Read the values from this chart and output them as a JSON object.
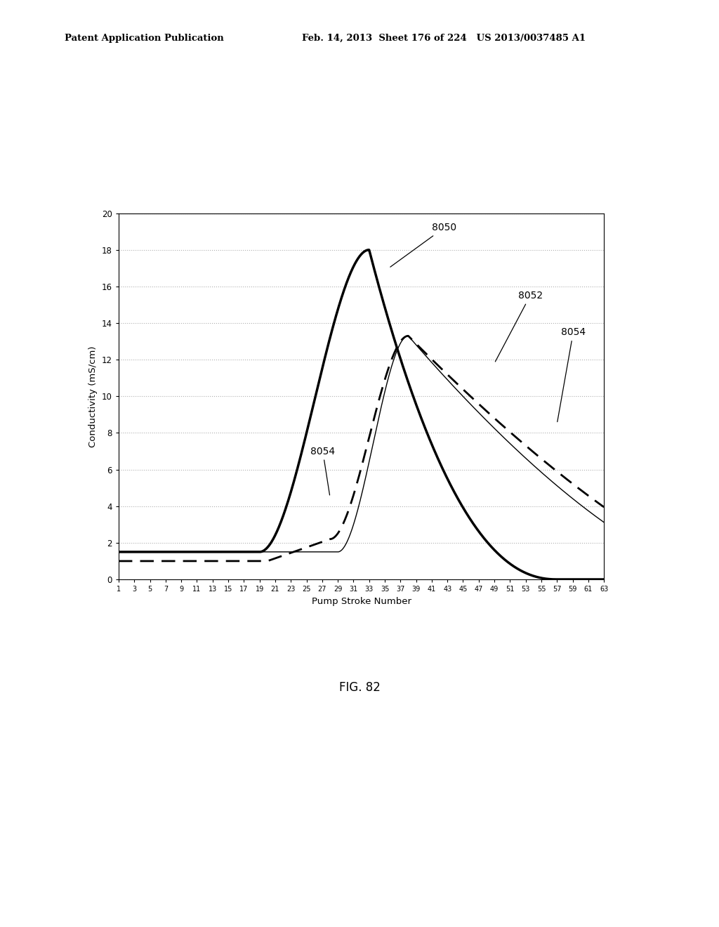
{
  "title_header": "Patent Application Publication    Feb. 14, 2013  Sheet 176 of 224   US 2013/0037485 A1",
  "xlabel": "Pump Stroke Number",
  "ylabel": "Conductivity (mS/cm)",
  "fig_label": "FIG. 82",
  "x_ticks": [
    1,
    3,
    5,
    7,
    9,
    11,
    13,
    15,
    17,
    19,
    21,
    23,
    25,
    27,
    29,
    31,
    33,
    35,
    37,
    39,
    41,
    43,
    45,
    47,
    49,
    51,
    53,
    55,
    57,
    59,
    61,
    63
  ],
  "ylim": [
    0,
    20
  ],
  "xlim": [
    1,
    63
  ],
  "background_color": "#ffffff",
  "grid_color": "#b0b0b0"
}
